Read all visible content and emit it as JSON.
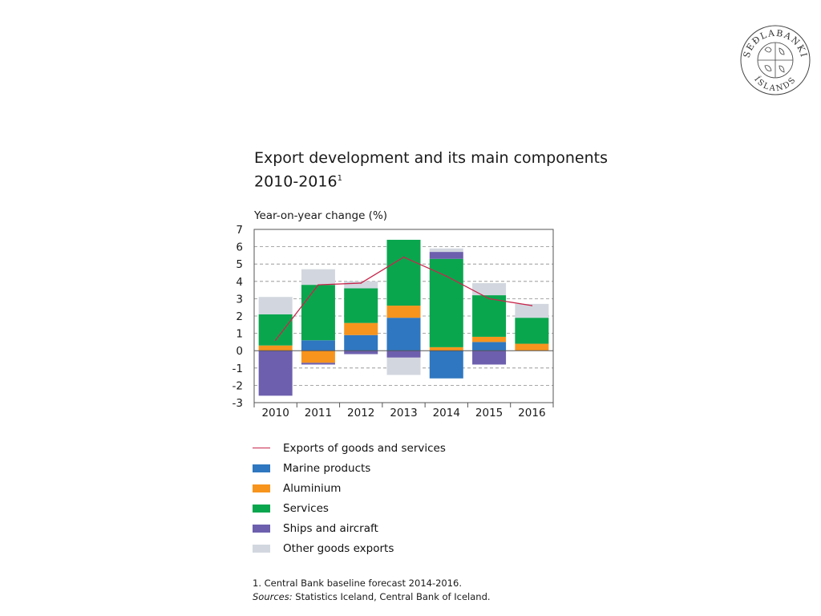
{
  "logo": {
    "text_top": "SEÐLABANKI",
    "text_bottom": "ÍSLANDS"
  },
  "title": {
    "line1": "Export development and its main components",
    "line2": "2010-2016",
    "footnote_mark": "1"
  },
  "colors": {
    "marine": "#2f77c0",
    "aluminium": "#f7941d",
    "services": "#0aa64e",
    "ships": "#6d5fae",
    "other": "#d2d7df",
    "line": "#c8264c",
    "grid": "#8c8c8c",
    "axis": "#555555"
  },
  "chart_data": {
    "type": "bar",
    "subtype": "stacked-bar-with-line",
    "ylabel": "Year-on-year change (%)",
    "ylim": [
      -3,
      7
    ],
    "yticks": [
      7,
      6,
      5,
      4,
      3,
      2,
      1,
      0,
      -1,
      -2,
      -3
    ],
    "grid": true,
    "categories": [
      "2010",
      "2011",
      "2012",
      "2013",
      "2014",
      "2015",
      "2016"
    ],
    "series": [
      {
        "name": "Marine products",
        "key": "marine",
        "values": [
          0.0,
          0.6,
          0.9,
          1.9,
          -1.6,
          0.5,
          0.0
        ]
      },
      {
        "name": "Aluminium",
        "key": "aluminium",
        "values": [
          0.3,
          -0.7,
          0.7,
          0.7,
          0.2,
          0.3,
          0.4
        ]
      },
      {
        "name": "Services",
        "key": "services",
        "values": [
          1.8,
          3.2,
          2.0,
          3.8,
          5.1,
          2.4,
          1.5
        ]
      },
      {
        "name": "Ships and aircraft",
        "key": "ships",
        "values": [
          -2.6,
          -0.1,
          -0.2,
          -0.4,
          0.4,
          -0.8,
          0.0
        ]
      },
      {
        "name": "Other goods exports",
        "key": "other",
        "values": [
          1.0,
          0.9,
          0.4,
          -1.0,
          0.2,
          0.7,
          0.8
        ]
      }
    ],
    "line_series": {
      "name": "Exports of goods and services",
      "key": "line",
      "values": [
        0.6,
        3.8,
        3.9,
        5.4,
        4.3,
        3.0,
        2.6
      ]
    }
  },
  "legend": [
    {
      "label": "Exports of goods and services",
      "key": "line",
      "kind": "line"
    },
    {
      "label": "Marine products",
      "key": "marine",
      "kind": "box"
    },
    {
      "label": "Aluminium",
      "key": "aluminium",
      "kind": "box"
    },
    {
      "label": "Services",
      "key": "services",
      "kind": "box"
    },
    {
      "label": "Ships and aircraft",
      "key": "ships",
      "kind": "box"
    },
    {
      "label": "Other goods exports",
      "key": "other",
      "kind": "box"
    }
  ],
  "footnotes": {
    "note1": "1. Central Bank baseline forecast 2014-2016.",
    "sources_label": "Sources:",
    "sources_text": " Statistics Iceland, Central Bank of Iceland."
  }
}
